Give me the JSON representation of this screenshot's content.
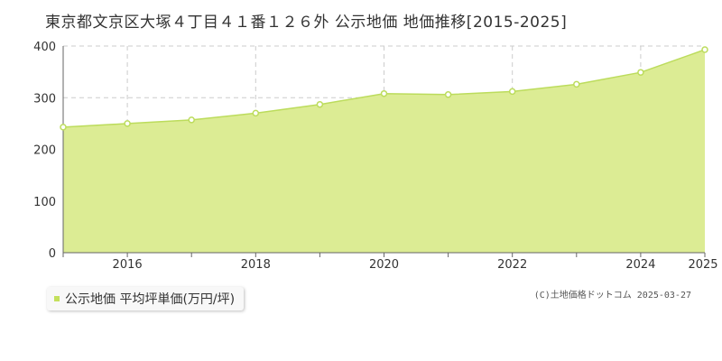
{
  "title": "東京都文京区大塚４丁目４１番１２６外 公示地価 地価推移[2015-2025]",
  "credit": "(C)土地価格ドットコム 2025-03-27",
  "colors": {
    "area_fill": "#dcec94",
    "line": "#bcdc5c",
    "marker_fill": "#ffffff",
    "grid": "#cccccc",
    "axis": "#666666",
    "legend_swatch": "#c4e05c"
  },
  "chart_data": {
    "type": "area",
    "title": "東京都文京区大塚４丁目４１番１２６外 公示地価 地価推移[2015-2025]",
    "x": [
      2015,
      2016,
      2017,
      2018,
      2019,
      2020,
      2021,
      2022,
      2023,
      2024,
      2025
    ],
    "xticks": [
      "2016",
      "2018",
      "2020",
      "2022",
      "2024",
      "2025"
    ],
    "yticks": [
      "0",
      "100",
      "200",
      "300",
      "400"
    ],
    "ylim": [
      0,
      400
    ],
    "grid": true,
    "legend_position": "bottom-left",
    "series": [
      {
        "name": "公示地価 平均坪単価(万円/坪)",
        "values": [
          243,
          250,
          257,
          270,
          287,
          308,
          306,
          312,
          326,
          349,
          393
        ]
      }
    ]
  }
}
